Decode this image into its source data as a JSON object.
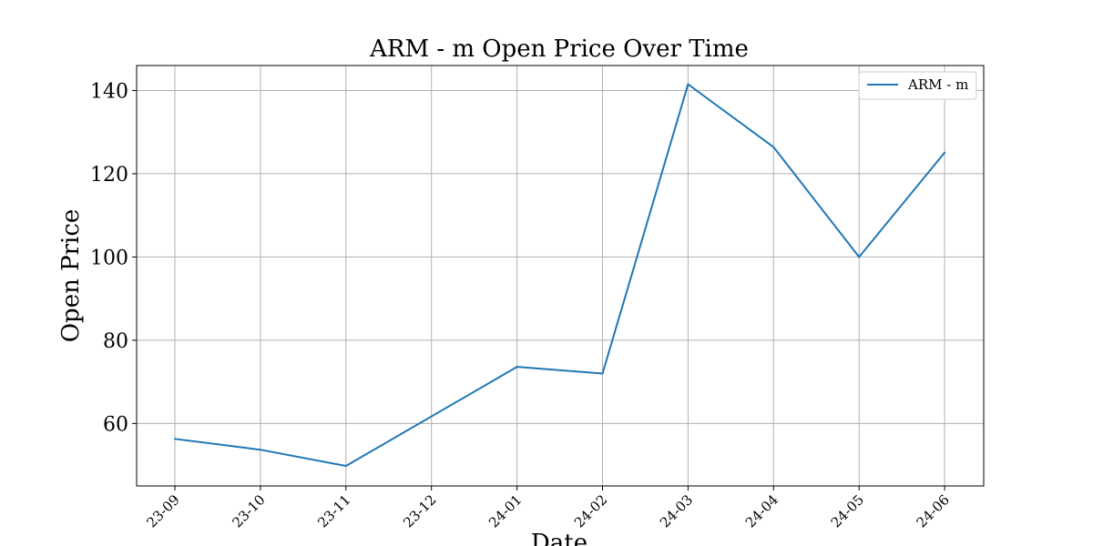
{
  "chart_data": {
    "type": "line",
    "title": "ARM - m Open Price Over Time",
    "xlabel": "Date",
    "ylabel": "Open Price",
    "x": [
      "23-09",
      "23-10",
      "23-11",
      "23-12",
      "24-01",
      "24-02",
      "24-03",
      "24-04",
      "24-05",
      "24-06"
    ],
    "series": [
      {
        "name": "ARM - m",
        "color": "#1f77b4",
        "points": [
          {
            "x": "23-09",
            "y": 56.3
          },
          {
            "x": "23-10",
            "y": 53.7
          },
          {
            "x": "23-11",
            "y": 49.8
          },
          {
            "x": "24-01",
            "y": 73.6
          },
          {
            "x": "24-02",
            "y": 72.0
          },
          {
            "x": "24-03",
            "y": 141.5
          },
          {
            "x": "24-04",
            "y": 126.4
          },
          {
            "x": "24-05",
            "y": 100.0
          },
          {
            "x": "24-06",
            "y": 125.1
          }
        ]
      }
    ],
    "yticks": [
      60,
      80,
      100,
      120,
      140
    ],
    "ylim": [
      45,
      146
    ],
    "grid": true,
    "legend_position": "upper right"
  }
}
